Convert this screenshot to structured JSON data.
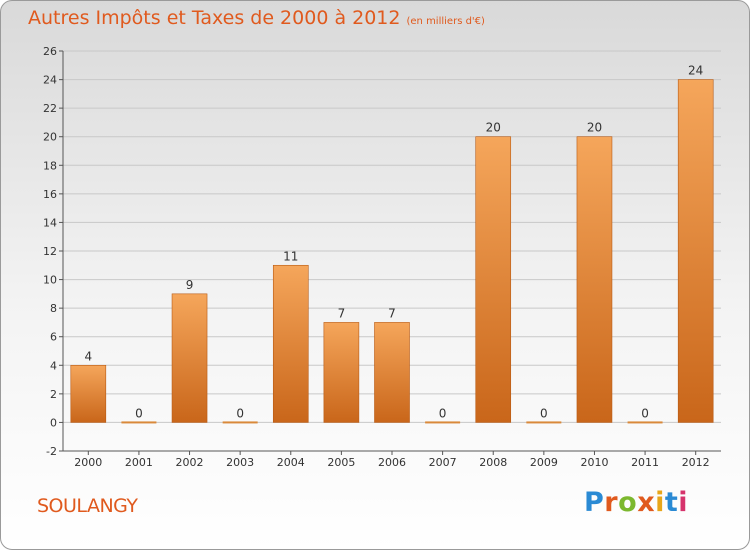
{
  "header": {
    "title": "Autres Impôts et Taxes de 2000 à 2012",
    "subtitle": "(en milliers d'€)"
  },
  "footer": {
    "commune": "SOULANGY",
    "logo_text": "Proxiti"
  },
  "colors": {
    "accent": "#e05a1e",
    "bar_top": "#f5a65b",
    "bar_bottom": "#c9661a",
    "grid": "#c8c8c8"
  },
  "chart_data": {
    "type": "bar",
    "title": "Autres Impôts et Taxes de 2000 à 2012",
    "subtitle": "(en milliers d'€)",
    "categories": [
      "2000",
      "2001",
      "2002",
      "2003",
      "2004",
      "2005",
      "2006",
      "2007",
      "2008",
      "2009",
      "2010",
      "2011",
      "2012"
    ],
    "values": [
      4,
      0,
      9,
      0,
      11,
      7,
      7,
      0,
      20,
      0,
      20,
      0,
      24
    ],
    "ylim": [
      -2,
      26
    ],
    "yticks": [
      -2,
      0,
      2,
      4,
      6,
      8,
      10,
      12,
      14,
      16,
      18,
      20,
      22,
      24,
      26
    ],
    "grid": true,
    "data_labels": true
  }
}
